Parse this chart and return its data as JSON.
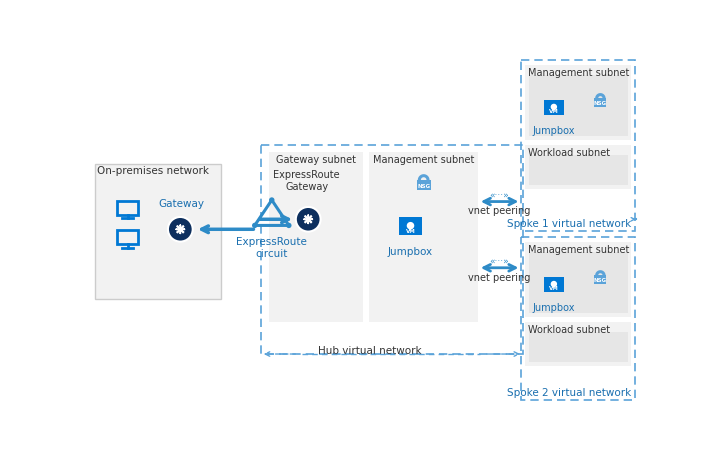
{
  "bg": "#ffffff",
  "blue_dark": "#0d2f5e",
  "blue_icon": "#0078d4",
  "blue_mid": "#2e8bc7",
  "blue_light": "#5ba3d9",
  "gray_box": "#f2f2f2",
  "gray_inner": "#e6e6e6",
  "text_dark": "#333333",
  "text_blue": "#1a6faf",
  "dashed_color": "#5ba3d9",
  "on_premises": "On-premises network",
  "gateway_subnet": "Gateway subnet",
  "management_subnet_hub": "Management subnet",
  "hub_vnet": "Hub virtual network",
  "expressroute_circuit": "ExpressRoute\ncircuit",
  "expressroute_gw": "ExpressRoute\nGateway",
  "gateway": "Gateway",
  "jumpbox": "Jumpbox",
  "vnet_peering": "vnet peering",
  "spoke1_vnet": "Spoke 1 virtual network",
  "spoke2_vnet": "Spoke 2 virtual network",
  "management_subnet": "Management subnet",
  "workload_subnet": "Workload subnet"
}
